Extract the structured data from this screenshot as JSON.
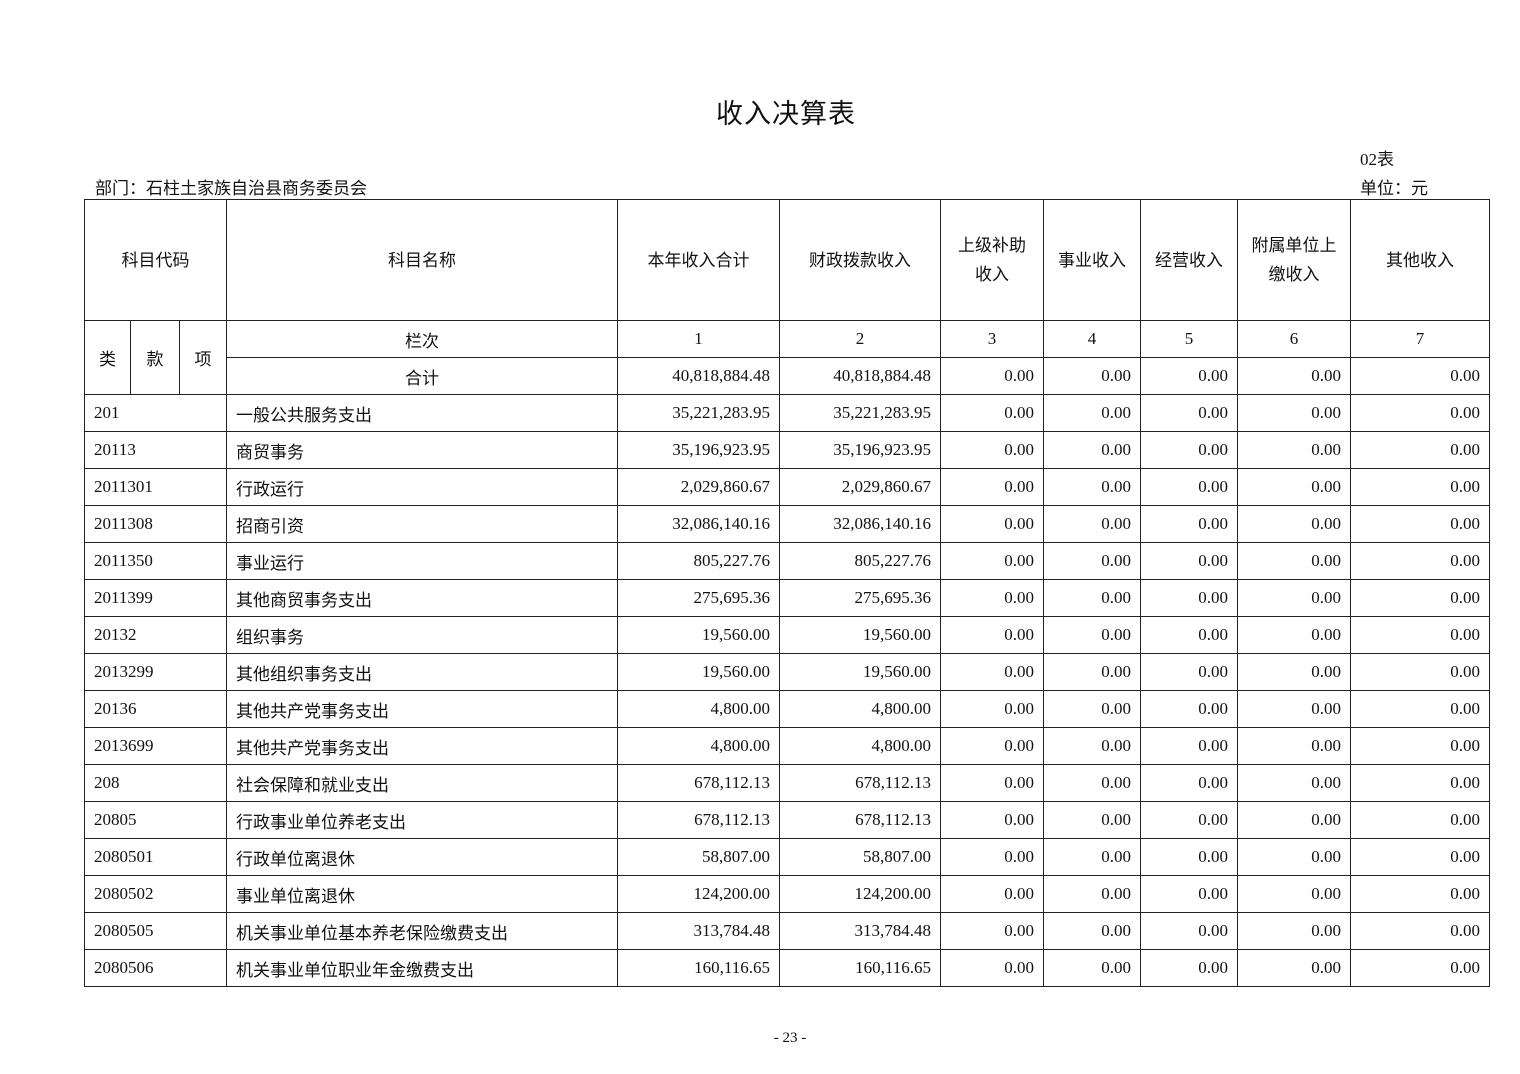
{
  "title": "收入决算表",
  "form_no": "02表",
  "department": "部门：石柱土家族自治县商务委员会",
  "unit": "单位：元",
  "headers": {
    "code": "科目代码",
    "name": "科目名称",
    "cols": [
      "本年收入合计",
      "财政拨款收入",
      "上级补助收入",
      "事业收入",
      "经营收入",
      "附属单位上缴收入",
      "其他收入"
    ],
    "lei": "类",
    "kuan": "款",
    "xiang": "项",
    "lanci": "栏次",
    "col_numbers": [
      "1",
      "2",
      "3",
      "4",
      "5",
      "6",
      "7"
    ]
  },
  "total": {
    "label": "合计",
    "values": [
      "40,818,884.48",
      "40,818,884.48",
      "0.00",
      "0.00",
      "0.00",
      "0.00",
      "0.00"
    ]
  },
  "rows": [
    {
      "code": "201",
      "name": "一般公共服务支出",
      "values": [
        "35,221,283.95",
        "35,221,283.95",
        "0.00",
        "0.00",
        "0.00",
        "0.00",
        "0.00"
      ]
    },
    {
      "code": "20113",
      "name": "商贸事务",
      "values": [
        "35,196,923.95",
        "35,196,923.95",
        "0.00",
        "0.00",
        "0.00",
        "0.00",
        "0.00"
      ]
    },
    {
      "code": "2011301",
      "name": "行政运行",
      "values": [
        "2,029,860.67",
        "2,029,860.67",
        "0.00",
        "0.00",
        "0.00",
        "0.00",
        "0.00"
      ]
    },
    {
      "code": "2011308",
      "name": "招商引资",
      "values": [
        "32,086,140.16",
        "32,086,140.16",
        "0.00",
        "0.00",
        "0.00",
        "0.00",
        "0.00"
      ]
    },
    {
      "code": "2011350",
      "name": "事业运行",
      "values": [
        "805,227.76",
        "805,227.76",
        "0.00",
        "0.00",
        "0.00",
        "0.00",
        "0.00"
      ]
    },
    {
      "code": "2011399",
      "name": "其他商贸事务支出",
      "values": [
        "275,695.36",
        "275,695.36",
        "0.00",
        "0.00",
        "0.00",
        "0.00",
        "0.00"
      ]
    },
    {
      "code": "20132",
      "name": "组织事务",
      "values": [
        "19,560.00",
        "19,560.00",
        "0.00",
        "0.00",
        "0.00",
        "0.00",
        "0.00"
      ]
    },
    {
      "code": "2013299",
      "name": "其他组织事务支出",
      "values": [
        "19,560.00",
        "19,560.00",
        "0.00",
        "0.00",
        "0.00",
        "0.00",
        "0.00"
      ]
    },
    {
      "code": "20136",
      "name": "其他共产党事务支出",
      "values": [
        "4,800.00",
        "4,800.00",
        "0.00",
        "0.00",
        "0.00",
        "0.00",
        "0.00"
      ]
    },
    {
      "code": "2013699",
      "name": "其他共产党事务支出",
      "values": [
        "4,800.00",
        "4,800.00",
        "0.00",
        "0.00",
        "0.00",
        "0.00",
        "0.00"
      ]
    },
    {
      "code": "208",
      "name": "社会保障和就业支出",
      "values": [
        "678,112.13",
        "678,112.13",
        "0.00",
        "0.00",
        "0.00",
        "0.00",
        "0.00"
      ]
    },
    {
      "code": "20805",
      "name": "行政事业单位养老支出",
      "values": [
        "678,112.13",
        "678,112.13",
        "0.00",
        "0.00",
        "0.00",
        "0.00",
        "0.00"
      ]
    },
    {
      "code": "2080501",
      "name": "行政单位离退休",
      "values": [
        "58,807.00",
        "58,807.00",
        "0.00",
        "0.00",
        "0.00",
        "0.00",
        "0.00"
      ]
    },
    {
      "code": "2080502",
      "name": "事业单位离退休",
      "values": [
        "124,200.00",
        "124,200.00",
        "0.00",
        "0.00",
        "0.00",
        "0.00",
        "0.00"
      ]
    },
    {
      "code": "2080505",
      "name": "机关事业单位基本养老保险缴费支出",
      "values": [
        "313,784.48",
        "313,784.48",
        "0.00",
        "0.00",
        "0.00",
        "0.00",
        "0.00"
      ]
    },
    {
      "code": "2080506",
      "name": "机关事业单位职业年金缴费支出",
      "values": [
        "160,116.65",
        "160,116.65",
        "0.00",
        "0.00",
        "0.00",
        "0.00",
        "0.00"
      ]
    }
  ],
  "page_number": "- 23 -"
}
